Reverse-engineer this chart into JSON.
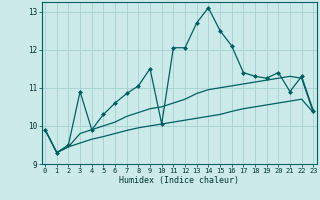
{
  "title": "",
  "xlabel": "Humidex (Indice chaleur)",
  "ylabel": "",
  "bg_color": "#cceaea",
  "grid_color": "#aad4d4",
  "line_color": "#006060",
  "x": [
    0,
    1,
    2,
    3,
    4,
    5,
    6,
    7,
    8,
    9,
    10,
    11,
    12,
    13,
    14,
    15,
    16,
    17,
    18,
    19,
    20,
    21,
    22,
    23
  ],
  "y_main": [
    9.9,
    9.3,
    9.5,
    10.9,
    9.9,
    10.3,
    10.6,
    10.85,
    11.05,
    11.5,
    10.05,
    12.05,
    12.05,
    12.7,
    13.1,
    12.5,
    12.1,
    11.4,
    11.3,
    11.25,
    11.4,
    10.9,
    11.3,
    10.4
  ],
  "y_lower": [
    9.9,
    9.3,
    9.45,
    9.55,
    9.65,
    9.72,
    9.8,
    9.88,
    9.95,
    10.0,
    10.05,
    10.1,
    10.15,
    10.2,
    10.25,
    10.3,
    10.38,
    10.45,
    10.5,
    10.55,
    10.6,
    10.65,
    10.7,
    10.35
  ],
  "y_upper": [
    9.9,
    9.3,
    9.45,
    9.8,
    9.9,
    10.0,
    10.1,
    10.25,
    10.35,
    10.45,
    10.5,
    10.6,
    10.7,
    10.85,
    10.95,
    11.0,
    11.05,
    11.1,
    11.15,
    11.2,
    11.25,
    11.3,
    11.25,
    10.35
  ],
  "ylim": [
    9.0,
    13.25
  ],
  "yticks": [
    9,
    10,
    11,
    12,
    13
  ],
  "xlim": [
    -0.3,
    23.3
  ]
}
